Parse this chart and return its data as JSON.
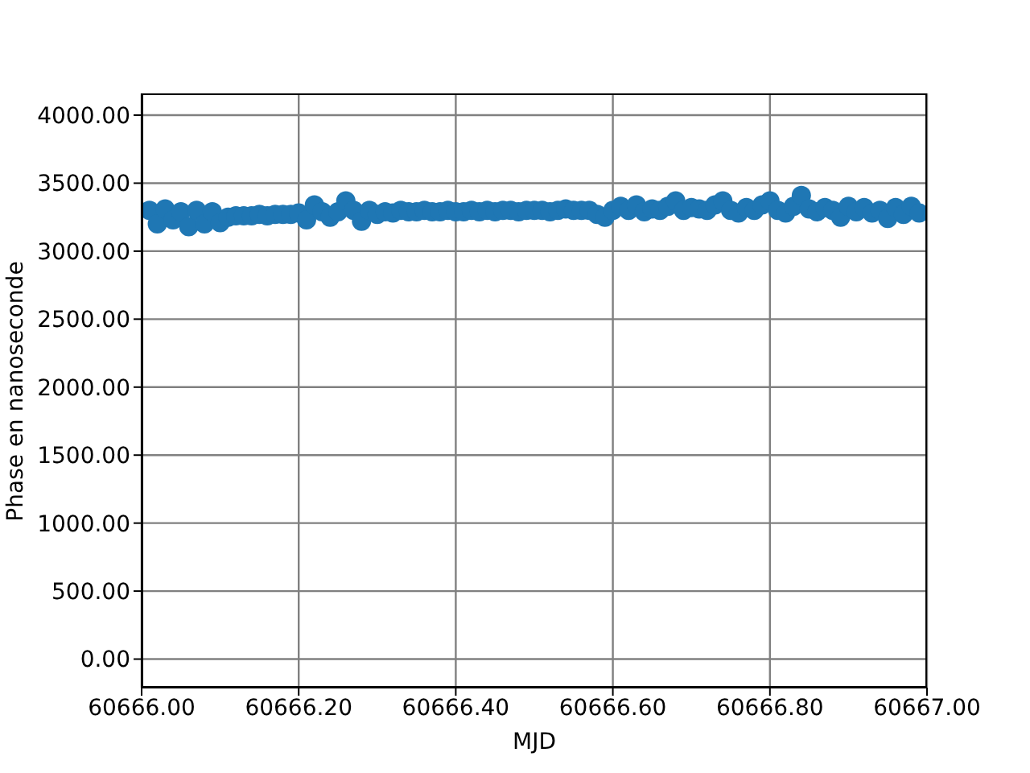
{
  "chart_data": {
    "type": "scatter",
    "xlabel": "MJD",
    "ylabel": "Phase en nanoseconde",
    "color": "#1f77b4",
    "marker": "circle",
    "grid": true,
    "xlim": [
      60666,
      60667
    ],
    "ylim": [
      -210,
      4160
    ],
    "xticks": [
      {
        "value": 60666,
        "label": "60666.00"
      },
      {
        "value": 60666.2,
        "label": "60666.20"
      },
      {
        "value": 60666.4,
        "label": "60666.40"
      },
      {
        "value": 60666.6,
        "label": "60666.60"
      },
      {
        "value": 60666.8,
        "label": "60666.80"
      },
      {
        "value": 60667,
        "label": "60667.00"
      }
    ],
    "yticks": [
      {
        "value": 0,
        "label": "0.00"
      },
      {
        "value": 500,
        "label": "500.00"
      },
      {
        "value": 1000,
        "label": "1000.00"
      },
      {
        "value": 1500,
        "label": "1500.00"
      },
      {
        "value": 2000,
        "label": "2000.00"
      },
      {
        "value": 2500,
        "label": "2500.00"
      },
      {
        "value": 3000,
        "label": "3000.00"
      },
      {
        "value": 3500,
        "label": "3500.00"
      },
      {
        "value": 4000,
        "label": "4000.00"
      }
    ],
    "x": [
      60666.01,
      60666.02,
      60666.03,
      60666.04,
      60666.05,
      60666.06,
      60666.07,
      60666.08,
      60666.09,
      60666.1,
      60666.11,
      60666.12,
      60666.13,
      60666.14,
      60666.15,
      60666.16,
      60666.17,
      60666.18,
      60666.19,
      60666.2,
      60666.21,
      60666.22,
      60666.23,
      60666.24,
      60666.25,
      60666.26,
      60666.27,
      60666.28,
      60666.29,
      60666.3,
      60666.31,
      60666.32,
      60666.33,
      60666.34,
      60666.35,
      60666.36,
      60666.37,
      60666.38,
      60666.39,
      60666.4,
      60666.41,
      60666.42,
      60666.43,
      60666.44,
      60666.45,
      60666.46,
      60666.47,
      60666.48,
      60666.49,
      60666.5,
      60666.51,
      60666.52,
      60666.53,
      60666.54,
      60666.55,
      60666.56,
      60666.57,
      60666.58,
      60666.59,
      60666.6,
      60666.61,
      60666.62,
      60666.63,
      60666.64,
      60666.65,
      60666.66,
      60666.67,
      60666.68,
      60666.69,
      60666.7,
      60666.71,
      60666.72,
      60666.73,
      60666.74,
      60666.75,
      60666.76,
      60666.77,
      60666.78,
      60666.79,
      60666.8,
      60666.81,
      60666.82,
      60666.83,
      60666.84,
      60666.85,
      60666.86,
      60666.87,
      60666.88,
      60666.89,
      60666.9,
      60666.91,
      60666.92,
      60666.93,
      60666.94,
      60666.95,
      60666.96,
      60666.97,
      60666.98,
      60666.99
    ],
    "values": [
      3300,
      3200,
      3310,
      3230,
      3290,
      3180,
      3300,
      3200,
      3290,
      3210,
      3250,
      3260,
      3260,
      3260,
      3270,
      3260,
      3270,
      3270,
      3270,
      3280,
      3230,
      3340,
      3290,
      3250,
      3290,
      3370,
      3300,
      3220,
      3300,
      3270,
      3290,
      3280,
      3300,
      3290,
      3290,
      3300,
      3290,
      3290,
      3300,
      3290,
      3290,
      3300,
      3290,
      3300,
      3290,
      3300,
      3300,
      3290,
      3300,
      3300,
      3300,
      3290,
      3300,
      3310,
      3300,
      3300,
      3300,
      3270,
      3250,
      3300,
      3330,
      3300,
      3340,
      3290,
      3310,
      3300,
      3330,
      3370,
      3300,
      3320,
      3310,
      3300,
      3340,
      3370,
      3300,
      3280,
      3320,
      3300,
      3340,
      3370,
      3300,
      3280,
      3330,
      3410,
      3310,
      3290,
      3320,
      3300,
      3250,
      3330,
      3290,
      3320,
      3280,
      3300,
      3240,
      3320,
      3270,
      3330,
      3280
    ]
  }
}
